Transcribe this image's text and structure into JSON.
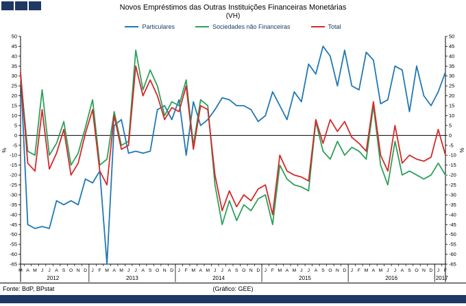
{
  "header": {
    "title": "Novos Empréstimos das Outras Instituições Financeiras Monetárias",
    "subtitle": "(VH)"
  },
  "footer": {
    "source": "Fonte: BdP, BPstat",
    "credit": "(Gráfico: GEE)"
  },
  "colors": {
    "navy": "#1F3864",
    "particulares": "#1F77B4",
    "snf": "#2BA05A",
    "total": "#D62728"
  },
  "chart_data": {
    "type": "line",
    "title": "Novos Empréstimos das Outras Instituições Financeiras Monetárias (VH)",
    "ylabel_left": "%",
    "ylabel_right": "%",
    "ylim": [
      -65,
      50
    ],
    "ytick_step": 5,
    "grid": false,
    "legend_position": "top",
    "x_months": [
      "M",
      "A",
      "M",
      "J",
      "J",
      "A",
      "S",
      "O",
      "N",
      "D",
      "J",
      "F",
      "M",
      "A",
      "M",
      "J",
      "J",
      "A",
      "S",
      "O",
      "N",
      "D",
      "J",
      "F",
      "M",
      "A",
      "M",
      "J",
      "J",
      "A",
      "S",
      "O",
      "N",
      "D",
      "J",
      "F",
      "M",
      "A",
      "M",
      "J",
      "J",
      "A",
      "S",
      "O",
      "N",
      "D",
      "J",
      "F",
      "M",
      "A",
      "M",
      "J",
      "J",
      "A",
      "S",
      "O",
      "N",
      "D",
      "J",
      "F"
    ],
    "x_years": [
      {
        "label": "2012",
        "start": 0,
        "end": 9
      },
      {
        "label": "2013",
        "start": 10,
        "end": 21
      },
      {
        "label": "2014",
        "start": 22,
        "end": 33
      },
      {
        "label": "2015",
        "start": 34,
        "end": 45
      },
      {
        "label": "2016",
        "start": 46,
        "end": 57
      },
      {
        "label": "2017",
        "start": 58,
        "end": 59
      }
    ],
    "series": [
      {
        "name": "Particulares",
        "color": "#1F77B4",
        "values": [
          32,
          -45,
          -47,
          -46,
          -47,
          -33,
          -35,
          -33,
          -35,
          -22,
          -24,
          -18,
          -65,
          5,
          8,
          -9,
          -8,
          -9,
          -8,
          13,
          15,
          8,
          18,
          -10,
          17,
          5,
          8,
          13,
          19,
          18,
          15,
          15,
          13,
          7,
          10,
          22,
          15,
          8,
          22,
          17,
          36,
          31,
          45,
          40,
          25,
          43,
          25,
          23,
          42,
          38,
          16,
          18,
          35,
          33,
          12,
          35,
          20,
          15,
          22,
          32
        ]
      },
      {
        "name": "Sociedades não Financeiras",
        "color": "#2BA05A",
        "values": [
          30,
          -8,
          -10,
          23,
          -10,
          -4,
          7,
          -15,
          -9,
          4,
          18,
          -15,
          -12,
          12,
          -5,
          -3,
          43,
          23,
          33,
          25,
          10,
          17,
          15,
          28,
          -5,
          18,
          15,
          -25,
          -45,
          -33,
          -43,
          -35,
          -38,
          -32,
          -30,
          -45,
          -15,
          -22,
          -25,
          -26,
          -28,
          7,
          -8,
          -12,
          -3,
          -10,
          -6,
          -8,
          -12,
          15,
          -15,
          -25,
          -3,
          -20,
          -18,
          -20,
          -22,
          -20,
          -14,
          -20
        ]
      },
      {
        "name": "Total",
        "color": "#D62728",
        "values": [
          32,
          -14,
          -18,
          13,
          -17,
          -9,
          3,
          -20,
          -14,
          1,
          13,
          -18,
          -25,
          10,
          -7,
          -5,
          35,
          20,
          28,
          20,
          8,
          14,
          12,
          25,
          -7,
          15,
          13,
          -20,
          -38,
          -28,
          -36,
          -30,
          -33,
          -27,
          -25,
          -40,
          -10,
          -18,
          -20,
          -21,
          -23,
          8,
          -4,
          8,
          2,
          7,
          -1,
          -4,
          -8,
          17,
          -10,
          -18,
          5,
          -14,
          -10,
          -12,
          -13,
          -11,
          3,
          -10
        ]
      }
    ]
  }
}
